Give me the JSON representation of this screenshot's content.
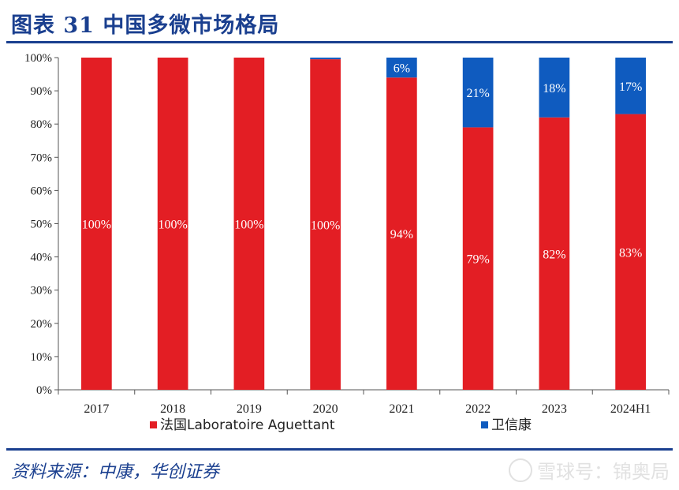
{
  "header": {
    "title": "图表 31  中国多微市场格局"
  },
  "footer": {
    "source": "资料来源：中康，华创证券",
    "watermark": "雪球号：锦奥局"
  },
  "colors": {
    "series1": "#e31e24",
    "series2": "#0f5bbf",
    "axis": "#555555",
    "title": "#1a3f8f"
  },
  "chart_data": {
    "type": "bar",
    "stacked": true,
    "title": "",
    "xlabel": "",
    "ylabel": "",
    "ylim": [
      0,
      100
    ],
    "yticks": [
      "0%",
      "10%",
      "20%",
      "30%",
      "40%",
      "50%",
      "60%",
      "70%",
      "80%",
      "90%",
      "100%"
    ],
    "categories": [
      "2017",
      "2018",
      "2019",
      "2020",
      "2021",
      "2022",
      "2023",
      "2024H1"
    ],
    "series": [
      {
        "name": "法国Laboratoire Aguettant",
        "values": [
          100,
          100,
          100,
          99.5,
          94,
          79,
          82,
          83
        ],
        "labels": [
          "100%",
          "100%",
          "100%",
          "100%",
          "94%",
          "79%",
          "82%",
          "83%"
        ]
      },
      {
        "name": "卫信康",
        "values": [
          0,
          0,
          0,
          0.5,
          6,
          21,
          18,
          17
        ],
        "labels": [
          "",
          "",
          "",
          "",
          "6%",
          "21%",
          "18%",
          "17%"
        ]
      }
    ],
    "legend": "bottom"
  }
}
